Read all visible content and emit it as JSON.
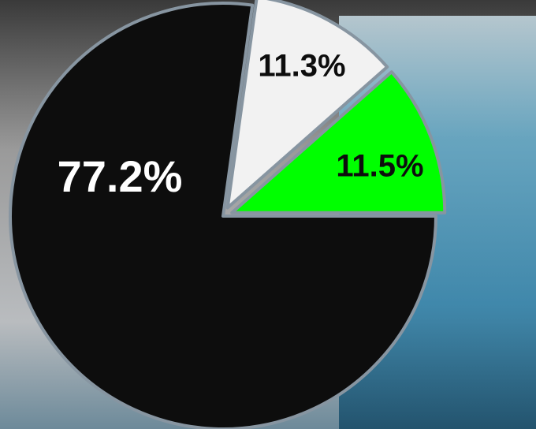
{
  "chart_data": {
    "type": "pie",
    "values": [
      77.2,
      11.3,
      11.5
    ],
    "value_labels": [
      "77.2%",
      "11.3%",
      "11.5%"
    ],
    "colors": [
      "#0d0d0d",
      "#f2f2f2",
      "#00ff00"
    ]
  }
}
